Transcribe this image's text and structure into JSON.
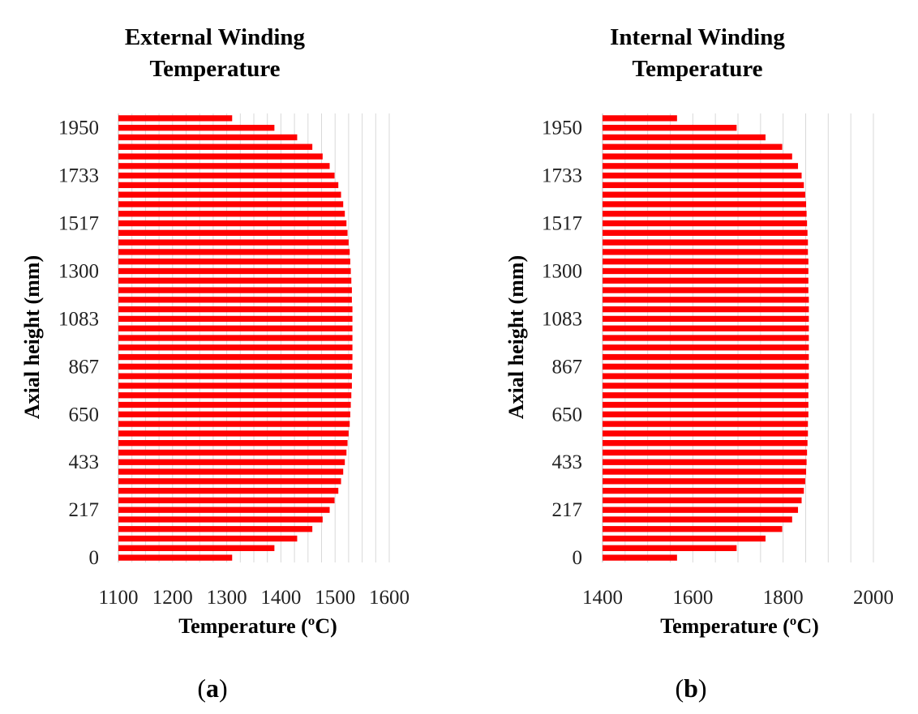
{
  "chart_data": [
    {
      "type": "bar",
      "orientation": "horizontal",
      "title_lines": [
        "External Winding",
        "Temperature"
      ],
      "xlabel": "Temperature (ºC)",
      "ylabel": "Axial height (mm)",
      "xlim": [
        1100,
        1600
      ],
      "xticks": [
        "1100",
        "1200",
        "1300",
        "1400",
        "1500",
        "1600"
      ],
      "ytick_labels": [
        "0",
        "217",
        "433",
        "650",
        "867",
        "1083",
        "1300",
        "1517",
        "1733",
        "1950"
      ],
      "grid": "vertical",
      "bar_color": "#ff0000",
      "values": [
        1310,
        1388,
        1430,
        1458,
        1477,
        1490,
        1499,
        1506,
        1511,
        1515,
        1518,
        1521,
        1523,
        1525,
        1527,
        1528,
        1529,
        1530,
        1531,
        1531,
        1532,
        1532,
        1532,
        1532,
        1532,
        1532,
        1532,
        1531,
        1531,
        1530,
        1529,
        1528,
        1527,
        1525,
        1523,
        1521,
        1518,
        1515,
        1511,
        1506,
        1499,
        1490,
        1477,
        1458,
        1430,
        1388,
        1310
      ],
      "caption_letter": "a"
    },
    {
      "type": "bar",
      "orientation": "horizontal",
      "title_lines": [
        "Internal Winding",
        "Temperature"
      ],
      "xlabel": "Temperature (ºC)",
      "ylabel": "Axial height (mm)",
      "xlim": [
        1400,
        2000
      ],
      "xticks": [
        "1400",
        "1600",
        "1800",
        "2000"
      ],
      "ytick_labels": [
        "0",
        "217",
        "433",
        "650",
        "867",
        "1083",
        "1300",
        "1517",
        "1733",
        "1950"
      ],
      "grid": "vertical",
      "bar_color": "#ff0000",
      "values": [
        1565,
        1697,
        1761,
        1798,
        1820,
        1833,
        1841,
        1846,
        1849,
        1851,
        1852,
        1853,
        1854,
        1855,
        1855,
        1856,
        1856,
        1856,
        1856,
        1857,
        1857,
        1857,
        1857,
        1857,
        1857,
        1857,
        1857,
        1857,
        1856,
        1856,
        1856,
        1856,
        1855,
        1855,
        1854,
        1853,
        1852,
        1851,
        1849,
        1846,
        1841,
        1833,
        1820,
        1798,
        1761,
        1697,
        1565
      ],
      "caption_letter": "b"
    }
  ]
}
